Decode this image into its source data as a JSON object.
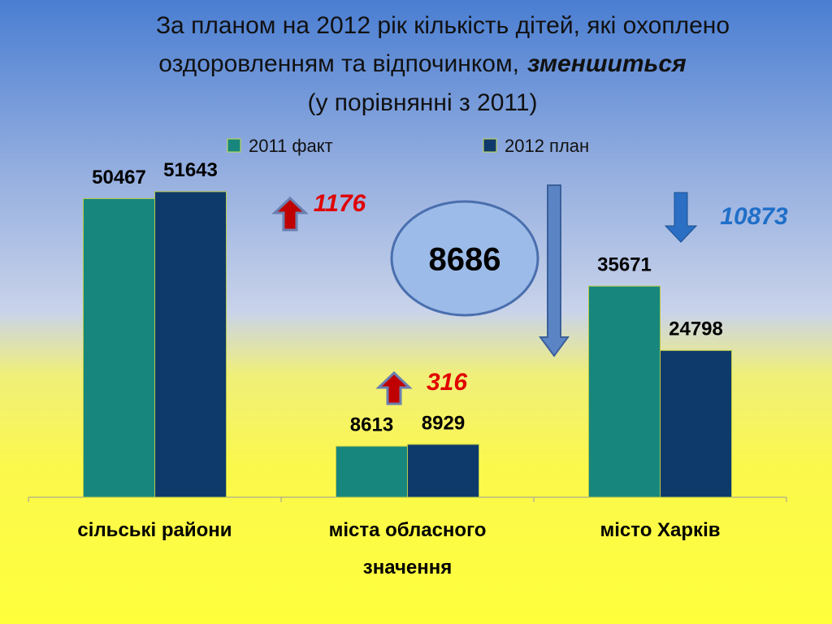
{
  "chart_data": {
    "type": "bar",
    "title": [
      "За планом на 2012 рік кількість дітей, які охоплено",
      "оздоровленням та відпочинком,",
      "зменшиться",
      "(у порівнянні з 2011)"
    ],
    "categories": [
      "сільські райони",
      "міста обласного значення",
      "місто Харків"
    ],
    "series": [
      {
        "name": "2011 факт",
        "color": "#17877d",
        "values": [
          50467,
          8613,
          35671
        ]
      },
      {
        "name": "2012 план",
        "color": "#0e3a6b",
        "values": [
          51643,
          8929,
          24798
        ]
      }
    ],
    "ylim": [
      0,
      60000
    ],
    "annotations": [
      1176,
      316,
      8686,
      10873
    ]
  }
}
